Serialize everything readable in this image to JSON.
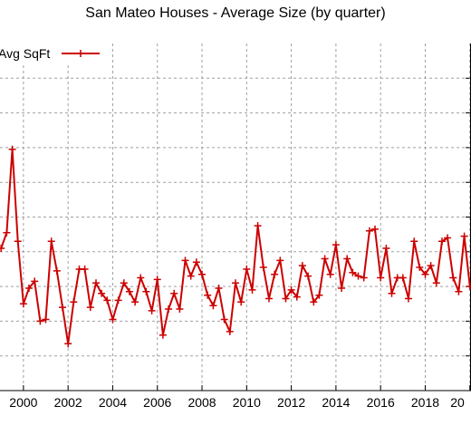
{
  "chart_data": {
    "type": "line",
    "title": "San Mateo Houses - Average Size (by quarter)",
    "xlabel": "",
    "ylabel": "",
    "grid": true,
    "legend_position": "top-left",
    "colors": {
      "series": "#cc0000",
      "grid": "#a0a0a0",
      "axis": "#000000"
    },
    "x_tick_labels": [
      "2000",
      "2002",
      "2004",
      "2006",
      "2008",
      "2010",
      "2012",
      "2014",
      "2016",
      "2018",
      "20"
    ],
    "xlim": [
      1998.95,
      2020.05
    ],
    "ylim": [
      0,
      10
    ],
    "series": [
      {
        "name": "Avg SqFt",
        "x": [
          1999.0,
          1999.25,
          1999.5,
          1999.75,
          2000.0,
          2000.25,
          2000.5,
          2000.75,
          2001.0,
          2001.25,
          2001.5,
          2001.75,
          2002.0,
          2002.25,
          2002.5,
          2002.75,
          2003.0,
          2003.25,
          2003.5,
          2003.75,
          2004.0,
          2004.25,
          2004.5,
          2004.75,
          2005.0,
          2005.25,
          2005.5,
          2005.75,
          2006.0,
          2006.25,
          2006.5,
          2006.75,
          2007.0,
          2007.25,
          2007.5,
          2007.75,
          2008.0,
          2008.25,
          2008.5,
          2008.75,
          2009.0,
          2009.25,
          2009.5,
          2009.75,
          2010.0,
          2010.25,
          2010.5,
          2010.75,
          2011.0,
          2011.25,
          2011.5,
          2011.75,
          2012.0,
          2012.25,
          2012.5,
          2012.75,
          2013.0,
          2013.25,
          2013.5,
          2013.75,
          2014.0,
          2014.25,
          2014.5,
          2014.75,
          2015.0,
          2015.25,
          2015.5,
          2015.75,
          2016.0,
          2016.25,
          2016.5,
          2016.75,
          2017.0,
          2017.25,
          2017.5,
          2017.75,
          2018.0,
          2018.25,
          2018.5,
          2018.75,
          2019.0,
          2019.25,
          2019.5,
          2019.75,
          2020.0
        ],
        "values": [
          4.1,
          4.55,
          6.95,
          4.3,
          2.5,
          2.95,
          3.15,
          2.0,
          2.05,
          4.3,
          3.45,
          2.4,
          1.35,
          2.55,
          3.5,
          3.5,
          2.4,
          3.1,
          2.8,
          2.6,
          2.05,
          2.6,
          3.1,
          2.85,
          2.55,
          3.25,
          2.85,
          2.3,
          3.2,
          1.6,
          2.35,
          2.8,
          2.35,
          3.75,
          3.3,
          3.7,
          3.35,
          2.75,
          2.45,
          2.95,
          2.05,
          1.7,
          3.1,
          2.55,
          3.5,
          2.9,
          4.75,
          3.55,
          2.65,
          3.35,
          3.75,
          2.65,
          2.9,
          2.7,
          3.6,
          3.3,
          2.55,
          2.75,
          3.8,
          3.35,
          4.2,
          2.95,
          3.8,
          3.4,
          3.3,
          3.25,
          4.6,
          4.65,
          3.25,
          4.1,
          2.8,
          3.25,
          3.25,
          2.65,
          4.3,
          3.55,
          3.35,
          3.6,
          3.1,
          4.3,
          4.4,
          3.25,
          2.85,
          4.45,
          3.0
        ]
      }
    ]
  }
}
